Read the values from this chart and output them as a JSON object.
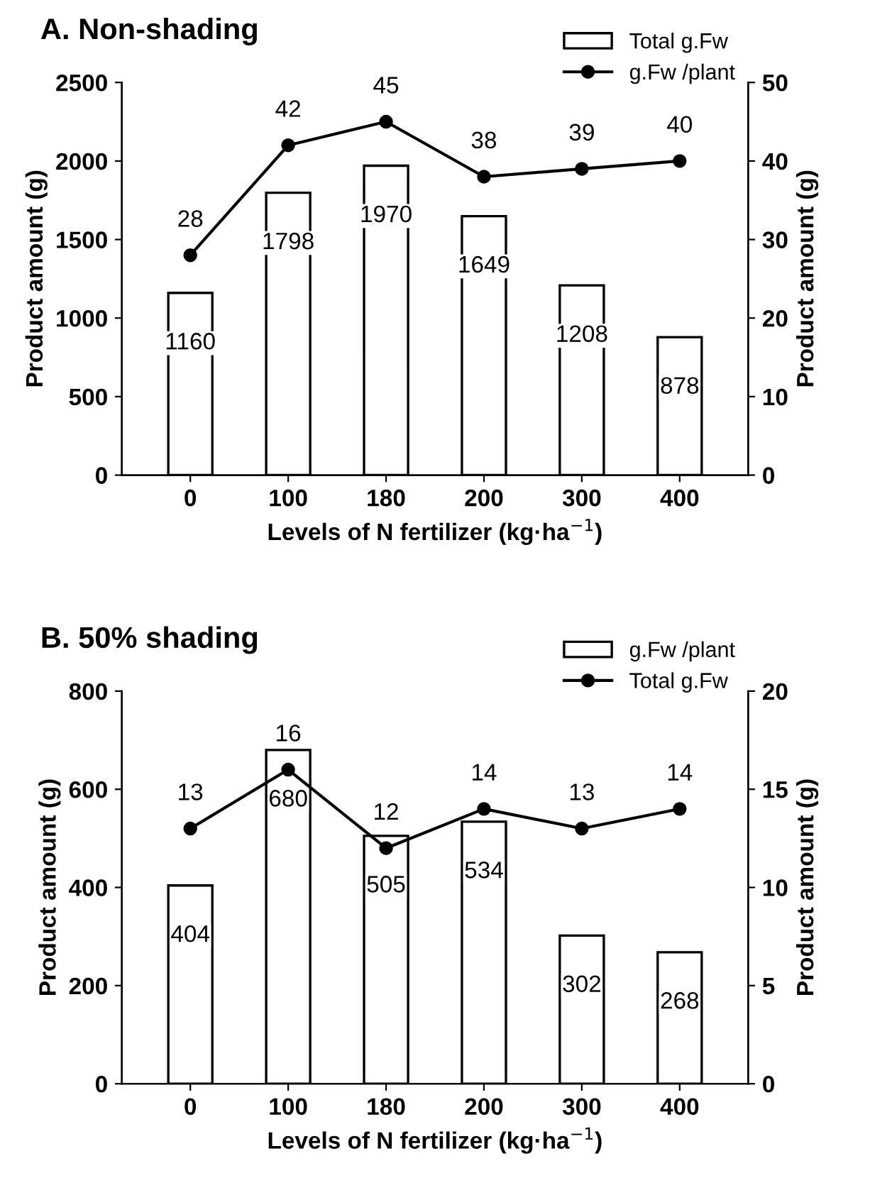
{
  "chart_data": [
    {
      "type": "bar",
      "title": "A. Non-shading",
      "xlabel": "Levels of N fertilizer (kg·ha$^{−1}$)",
      "ylabel": "Product amount (g)",
      "y2label": "Product amount (g)",
      "categories": [
        "0",
        "100",
        "180",
        "200",
        "300",
        "400"
      ],
      "series": [
        {
          "name": "Total g.Fw",
          "type": "bar",
          "color": "#ffffff",
          "values": [
            1160,
            1798,
            1970,
            1649,
            1208,
            878
          ]
        },
        {
          "name": "g.Fw /plant",
          "type": "line",
          "axis": "y2",
          "color": "#000000",
          "values": [
            28,
            42,
            45,
            38,
            39,
            40
          ]
        }
      ],
      "ylim": [
        0,
        2500
      ],
      "yticks": [
        0,
        500,
        1000,
        1500,
        2000,
        2500
      ],
      "y2lim": [
        0,
        50
      ],
      "y2ticks": [
        0,
        10,
        20,
        30,
        40,
        50
      ],
      "data_labels": true,
      "legend": "top right",
      "grid": false,
      "marker": "circle",
      "line_style": "solid"
    },
    {
      "type": "bar",
      "title": "B. 50% shading",
      "xlabel": "Levels of N fertilizer (kg·ha$^{−1}$)",
      "ylabel": "Product amount (g)",
      "y2label": "Product amount (g)",
      "categories": [
        "0",
        "100",
        "180",
        "200",
        "300",
        "400"
      ],
      "series": [
        {
          "name": "g.Fw /plant",
          "type": "bar",
          "color": "#ffffff",
          "values": [
            404,
            680,
            505,
            534,
            302,
            268
          ]
        },
        {
          "name": "Total g.Fw",
          "type": "line",
          "axis": "y2",
          "color": "#000000",
          "values": [
            13,
            16,
            12,
            14,
            13,
            14
          ]
        }
      ],
      "ylim": [
        0,
        800
      ],
      "yticks": [
        0,
        200,
        400,
        600,
        800
      ],
      "y2lim": [
        0,
        20
      ],
      "y2ticks": [
        0,
        5,
        10,
        15,
        20
      ],
      "data_labels": true,
      "legend": "top right",
      "grid": false,
      "marker": "circle",
      "line_style": "solid"
    }
  ]
}
